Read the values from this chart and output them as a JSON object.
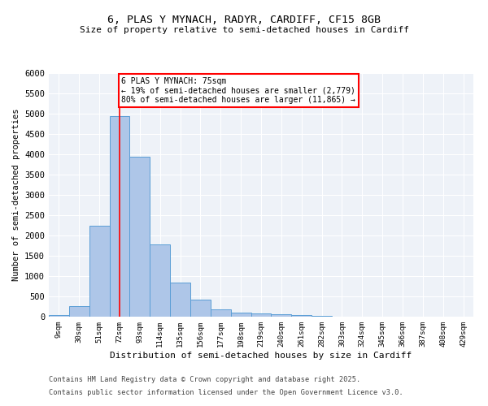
{
  "title_line1": "6, PLAS Y MYNACH, RADYR, CARDIFF, CF15 8GB",
  "title_line2": "Size of property relative to semi-detached houses in Cardiff",
  "xlabel": "Distribution of semi-detached houses by size in Cardiff",
  "ylabel": "Number of semi-detached properties",
  "categories": [
    "9sqm",
    "30sqm",
    "51sqm",
    "72sqm",
    "93sqm",
    "114sqm",
    "135sqm",
    "156sqm",
    "177sqm",
    "198sqm",
    "219sqm",
    "240sqm",
    "261sqm",
    "282sqm",
    "303sqm",
    "324sqm",
    "345sqm",
    "366sqm",
    "387sqm",
    "408sqm",
    "429sqm"
  ],
  "values": [
    40,
    260,
    2250,
    4950,
    3950,
    1780,
    840,
    415,
    185,
    110,
    75,
    55,
    35,
    18,
    10,
    8,
    5,
    4,
    3,
    2,
    2
  ],
  "bar_color": "#aec6e8",
  "bar_edge_color": "#5a9ed6",
  "property_line_color": "red",
  "annotation_title": "6 PLAS Y MYNACH: 75sqm",
  "annotation_line1": "← 19% of semi-detached houses are smaller (2,779)",
  "annotation_line2": "80% of semi-detached houses are larger (11,865) →",
  "ylim": [
    0,
    6000
  ],
  "yticks": [
    0,
    500,
    1000,
    1500,
    2000,
    2500,
    3000,
    3500,
    4000,
    4500,
    5000,
    5500,
    6000
  ],
  "footnote_line1": "Contains HM Land Registry data © Crown copyright and database right 2025.",
  "footnote_line2": "Contains public sector information licensed under the Open Government Licence v3.0.",
  "background_color": "#eef2f8",
  "bar_width": 1.0,
  "prop_line_index": 3.0
}
